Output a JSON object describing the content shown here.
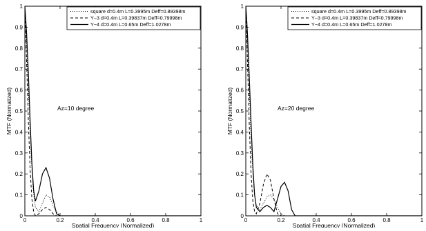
{
  "chart_data": [
    {
      "type": "line",
      "xlabel": "Spatial Frequency (Normalized)",
      "ylabel": "MTF (Normalized)",
      "xlim": [
        0,
        1
      ],
      "ylim": [
        0,
        1
      ],
      "xticks": [
        "0",
        "0.2",
        "0.4",
        "0.6",
        "0.8",
        "1"
      ],
      "yticks": [
        "0",
        "0.1",
        "0.2",
        "0.3",
        "0.4",
        "0.5",
        "0.6",
        "0.7",
        "0.8",
        "0.9",
        "1"
      ],
      "annotation": "Az=10 degree",
      "legend_position": "top-right",
      "series": [
        {
          "name": "square d=0.4m L=0.3995m Deff=0.89398m",
          "style": "dotted",
          "x": [
            0,
            0.005,
            0.01,
            0.02,
            0.03,
            0.04,
            0.05,
            0.06,
            0.08,
            0.1,
            0.12,
            0.14,
            0.16,
            0.18,
            0.2,
            0.22,
            1.0
          ],
          "y": [
            1,
            0.9,
            0.8,
            0.6,
            0.4,
            0.22,
            0.1,
            0.04,
            0.02,
            0.06,
            0.1,
            0.09,
            0.05,
            0.02,
            0,
            0,
            0
          ]
        },
        {
          "name": "Y−3 d=0.4m L=0.39837m Deff=0.79998m",
          "style": "dashed",
          "x": [
            0,
            0.005,
            0.01,
            0.02,
            0.03,
            0.04,
            0.05,
            0.06,
            0.08,
            0.1,
            0.12,
            0.14,
            0.16,
            0.18,
            0.2,
            1.0
          ],
          "y": [
            1,
            0.87,
            0.73,
            0.45,
            0.22,
            0.08,
            0.02,
            0,
            0.01,
            0.03,
            0.04,
            0.03,
            0.01,
            0,
            0,
            0
          ]
        },
        {
          "name": "Y−4 d=0.4m L=0.65m Deff=1.0278m",
          "style": "solid",
          "x": [
            0,
            0.005,
            0.01,
            0.02,
            0.03,
            0.04,
            0.05,
            0.06,
            0.08,
            0.1,
            0.12,
            0.14,
            0.16,
            0.18,
            0.2,
            0.22,
            1.0
          ],
          "y": [
            1,
            0.94,
            0.87,
            0.68,
            0.45,
            0.25,
            0.12,
            0.07,
            0.12,
            0.2,
            0.23,
            0.18,
            0.08,
            0.01,
            0,
            0,
            0
          ]
        }
      ]
    },
    {
      "type": "line",
      "xlabel": "Spatial Frequency (Normalized)",
      "ylabel": "MTF (Normalized)",
      "xlim": [
        0,
        1
      ],
      "ylim": [
        0,
        1
      ],
      "xticks": [
        "0",
        "0.2",
        "0.4",
        "0.6",
        "0.8",
        "1"
      ],
      "yticks": [
        "0",
        "0.1",
        "0.2",
        "0.3",
        "0.4",
        "0.5",
        "0.6",
        "0.7",
        "0.8",
        "0.9",
        "1"
      ],
      "annotation": "Az=20 degree",
      "legend_position": "top-right",
      "series": [
        {
          "name": "square d=0.4m L=0.3995m Deff=0.89398m",
          "style": "dotted",
          "x": [
            0,
            0.005,
            0.01,
            0.02,
            0.03,
            0.04,
            0.05,
            0.06,
            0.08,
            0.1,
            0.12,
            0.14,
            0.16,
            0.18,
            0.2,
            0.22,
            1.0
          ],
          "y": [
            1,
            0.9,
            0.8,
            0.58,
            0.38,
            0.2,
            0.1,
            0.05,
            0.03,
            0.06,
            0.09,
            0.1,
            0.08,
            0.04,
            0.01,
            0,
            0
          ]
        },
        {
          "name": "Y−3 d=0.4m L=0.39837m Deff=0.79998m",
          "style": "dashed",
          "x": [
            0,
            0.005,
            0.01,
            0.02,
            0.03,
            0.04,
            0.05,
            0.06,
            0.08,
            0.1,
            0.12,
            0.14,
            0.16,
            0.18,
            0.2,
            1.0
          ],
          "y": [
            1,
            0.87,
            0.72,
            0.43,
            0.2,
            0.07,
            0.02,
            0.01,
            0.06,
            0.15,
            0.2,
            0.17,
            0.08,
            0.01,
            0,
            0
          ]
        },
        {
          "name": "Y−4 d=0.4m L=0.65m Deff=1.0278m",
          "style": "solid",
          "x": [
            0,
            0.005,
            0.01,
            0.02,
            0.03,
            0.04,
            0.05,
            0.06,
            0.08,
            0.1,
            0.12,
            0.14,
            0.16,
            0.18,
            0.2,
            0.22,
            0.24,
            0.26,
            0.28,
            1.0
          ],
          "y": [
            1,
            0.94,
            0.86,
            0.66,
            0.44,
            0.24,
            0.1,
            0.04,
            0.02,
            0.04,
            0.05,
            0.04,
            0.02,
            0.08,
            0.14,
            0.16,
            0.12,
            0.03,
            0,
            0
          ]
        }
      ]
    }
  ]
}
